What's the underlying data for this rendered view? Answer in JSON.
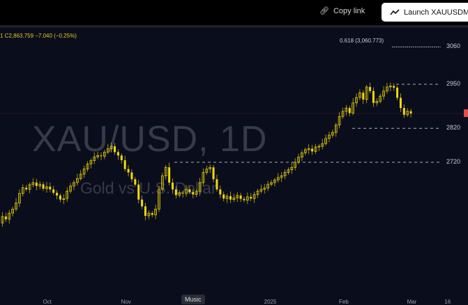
{
  "toolbar": {
    "copy_link": "Copy link",
    "launch": "Launch XAUUSDM"
  },
  "legend": {
    "text": "1 C2,863.759 −7.040 (−0.25%)"
  },
  "watermark": {
    "symbol": "XAU/USD, 1D",
    "description": "Gold vs U.S. Dollar"
  },
  "fib_label": "0.618 (3,060.773)",
  "tooltip": "Music",
  "colors": {
    "candle": "#f5d90a",
    "background": "#0a0e1c",
    "price_line": "#e84c4c"
  },
  "chart_data": {
    "type": "candlestick",
    "symbol": "XAU/USD",
    "interval": "1D",
    "last_close": 2863.759,
    "change": -7.04,
    "change_pct": -0.25,
    "y_ticks": [
      3060,
      2950,
      2820,
      2720
    ],
    "ylim": [
      2490,
      3120
    ],
    "horizontal_levels": [
      3060,
      2950,
      2820,
      2720
    ],
    "x_ticks": [
      {
        "label": "Oct",
        "index": 13
      },
      {
        "label": "Nov",
        "index": 36
      },
      {
        "label": "2025",
        "index": 78
      },
      {
        "label": "Feb",
        "index": 100
      },
      {
        "label": "Mar",
        "index": 120
      },
      {
        "label": "16",
        "index": 131
      }
    ],
    "closes": [
      2541,
      2560,
      2552,
      2570,
      2582,
      2600,
      2628,
      2645,
      2640,
      2654,
      2660,
      2650,
      2655,
      2642,
      2648,
      2640,
      2630,
      2622,
      2610,
      2613,
      2635,
      2650,
      2660,
      2672,
      2685,
      2700,
      2715,
      2725,
      2736,
      2740,
      2738,
      2750,
      2760,
      2767,
      2750,
      2740,
      2726,
      2700,
      2690,
      2670,
      2654,
      2610,
      2590,
      2562,
      2570,
      2565,
      2582,
      2640,
      2680,
      2705,
      2660,
      2640,
      2623,
      2630,
      2628,
      2640,
      2632,
      2625,
      2634,
      2660,
      2690,
      2700,
      2705,
      2670,
      2640,
      2625,
      2613,
      2620,
      2610,
      2615,
      2622,
      2612,
      2608,
      2618,
      2613,
      2625,
      2635,
      2640,
      2644,
      2655,
      2660,
      2668,
      2675,
      2680,
      2690,
      2698,
      2705,
      2720,
      2735,
      2748,
      2757,
      2760,
      2752,
      2765,
      2767,
      2775,
      2790,
      2800,
      2808,
      2830,
      2855,
      2870,
      2880,
      2865,
      2895,
      2911,
      2925,
      2905,
      2942,
      2930,
      2895,
      2900,
      2915,
      2930,
      2942,
      2945,
      2940,
      2910,
      2880,
      2860,
      2870.8,
      2863.759
    ]
  }
}
